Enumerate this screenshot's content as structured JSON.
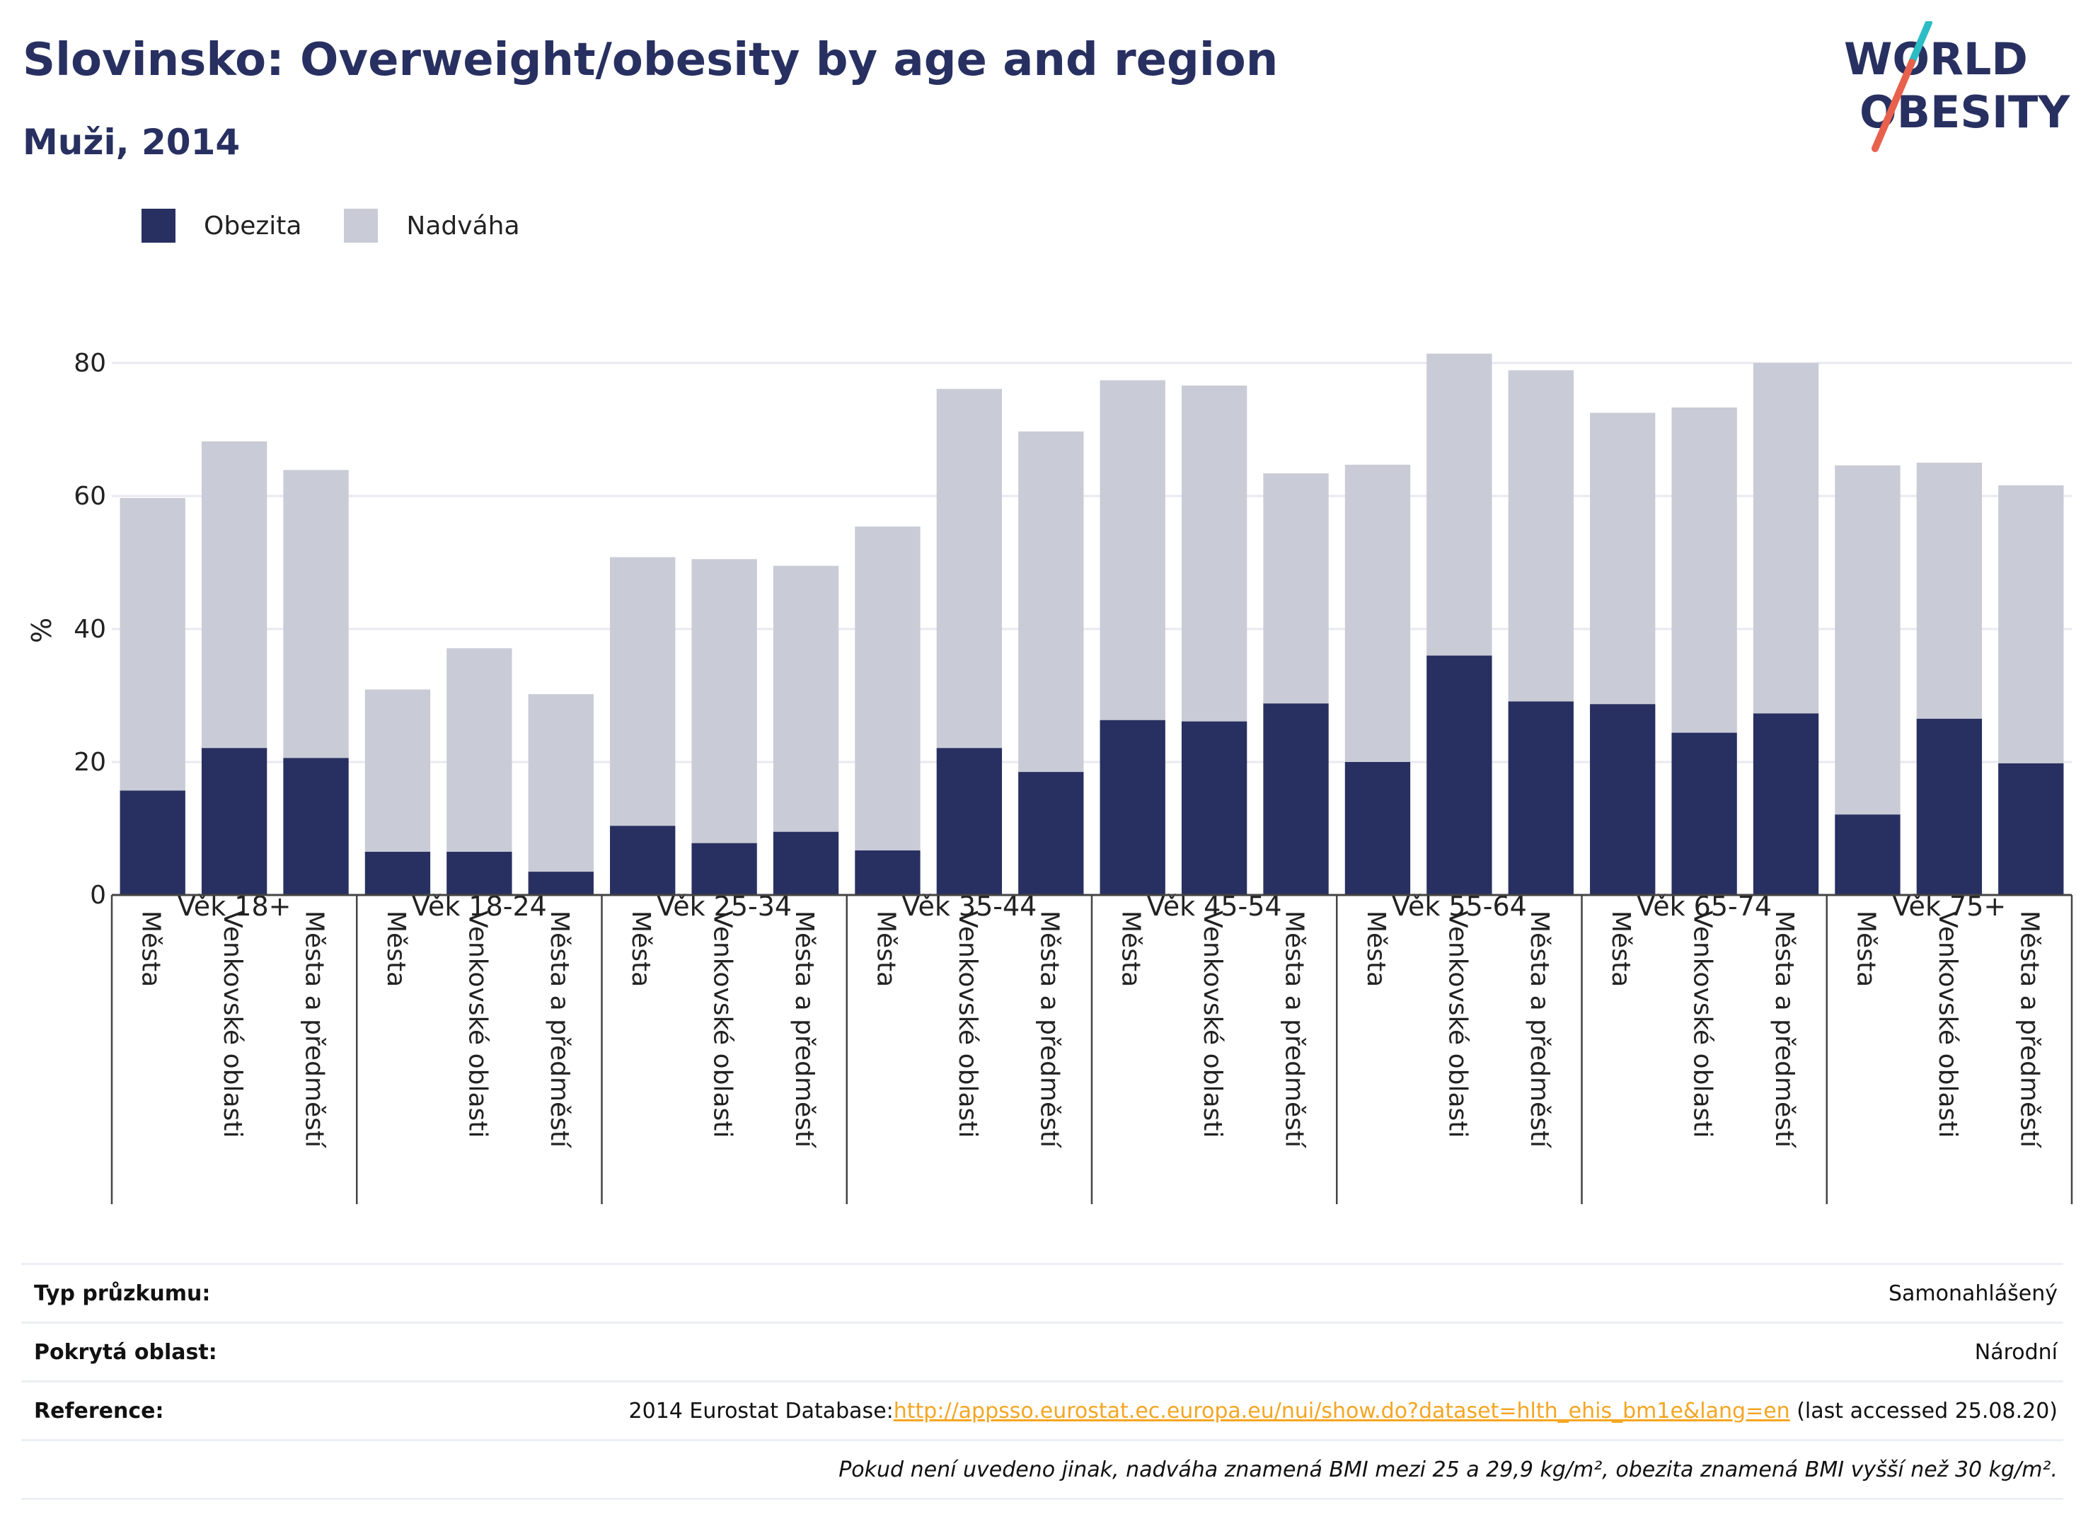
{
  "header": {
    "title": "Slovinsko: Overweight/obesity by age and region",
    "subtitle": "Muži, 2014",
    "logo_line1": "WORLD",
    "logo_line2": "OBESITY"
  },
  "legend": {
    "items": [
      {
        "label": "Obezita",
        "color": "#283061"
      },
      {
        "label": "Nadváha",
        "color": "#c9cbd6"
      }
    ]
  },
  "chart_data": {
    "type": "bar",
    "stacked": true,
    "ylabel": "%",
    "ylim": [
      0,
      85
    ],
    "yticks": [
      0,
      20,
      40,
      60,
      80
    ],
    "grid": true,
    "legend_position": "top-left",
    "groups": [
      "Věk 18+",
      "Věk 18-24",
      "Věk 25-34",
      "Věk 35-44",
      "Věk 45-54",
      "Věk 55-64",
      "Věk 65-74",
      "Věk 75+"
    ],
    "subcategories": [
      "Města",
      "Venkovské oblasti",
      "Města a předměstí"
    ],
    "series": [
      {
        "name": "Obezita",
        "color": "#283061",
        "values": [
          15.7,
          22.1,
          20.6,
          6.5,
          6.5,
          3.5,
          10.4,
          7.8,
          9.5,
          6.7,
          22.1,
          18.5,
          26.3,
          26.1,
          28.8,
          20.0,
          36.0,
          29.1,
          28.7,
          24.4,
          27.3,
          12.1,
          26.5,
          19.8
        ]
      },
      {
        "name": "Nadváha",
        "color": "#c9cbd6",
        "values": [
          44.0,
          46.1,
          43.3,
          24.4,
          30.6,
          26.7,
          40.4,
          42.7,
          40.0,
          48.7,
          54.0,
          51.2,
          51.1,
          50.5,
          34.6,
          44.7,
          45.4,
          49.8,
          43.8,
          48.9,
          52.7,
          52.5,
          38.5,
          41.8
        ]
      }
    ]
  },
  "meta": {
    "rows": [
      {
        "label": "Typ průzkumu:",
        "value": "Samonahlášený"
      },
      {
        "label": "Pokrytá oblast:",
        "value": "Národní"
      },
      {
        "label": "Reference:",
        "value_prefix": "2014 Eurostat Database:",
        "link": "http://appsso.eurostat.ec.europa.eu/nui/show.do?dataset=hlth_ehis_bm1e&lang=en",
        "value_suffix": " (last accessed 25.08.20)"
      }
    ],
    "note": "Pokud není uvedeno jinak, nadváha znamená BMI mezi 25 a 29,9 kg/m², obezita znamená BMI vyšší než 30 kg/m²."
  }
}
